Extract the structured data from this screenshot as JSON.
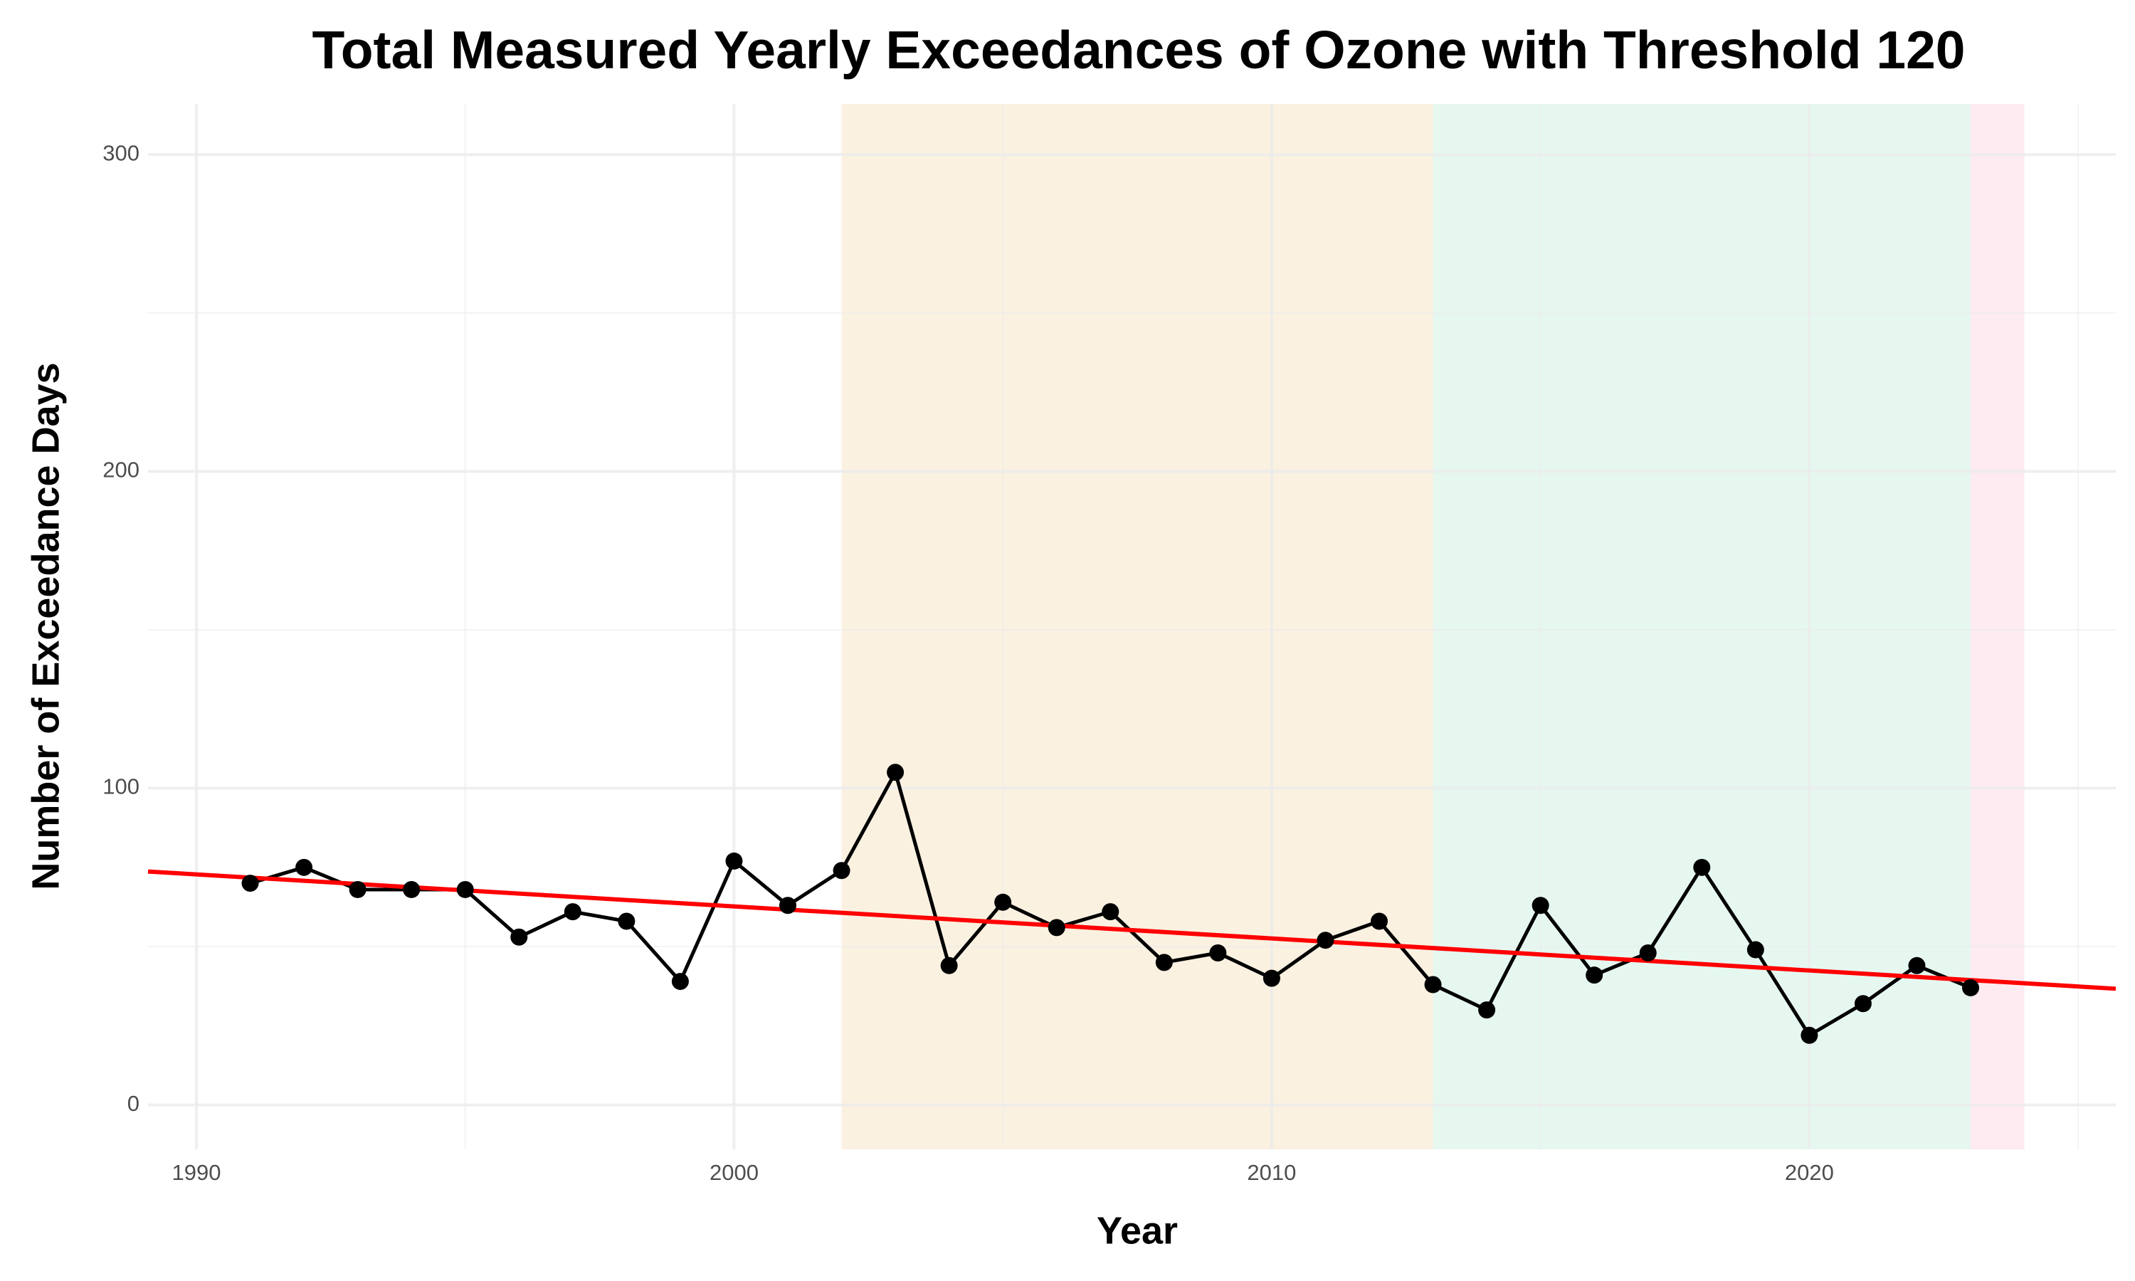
{
  "chart_data": {
    "type": "line",
    "title": "Total Measured Yearly Exceedances of Ozone with Threshold 120",
    "x_label": "Year",
    "y_label": "Number of Exceedance Days",
    "x": [
      1991,
      1992,
      1993,
      1994,
      1995,
      1996,
      1997,
      1998,
      1999,
      2000,
      2001,
      2002,
      2003,
      2004,
      2005,
      2006,
      2007,
      2008,
      2009,
      2010,
      2011,
      2012,
      2013,
      2014,
      2015,
      2016,
      2017,
      2018,
      2019,
      2020,
      2021,
      2022,
      2023
    ],
    "series": [
      {
        "color": "#000000",
        "values": [
          70,
          75,
          68,
          68,
          68,
          53,
          61,
          58,
          39,
          77,
          63,
          74,
          105,
          44,
          64,
          56,
          61,
          45,
          48,
          40,
          52,
          58,
          38,
          30,
          63,
          41,
          48,
          75,
          49,
          22,
          32,
          44,
          37
        ]
      }
    ],
    "trend": {
      "color": "#ff0000",
      "x": [
        1989.1,
        2025.7
      ],
      "values": [
        73.7,
        36.7
      ]
    },
    "bands": [
      {
        "start": 2002,
        "end": 2013,
        "color": "#faf1e1"
      },
      {
        "start": 2013,
        "end": 2023,
        "color": "#e6f7f0"
      },
      {
        "start": 2023,
        "end": 2024,
        "color": "#fdebf1"
      }
    ],
    "xlim": [
      1989.1,
      2025.7
    ],
    "ylim": [
      -14,
      316
    ],
    "xticks": [
      1990,
      2000,
      2010,
      2020
    ],
    "yticks": [
      0,
      100,
      200,
      300
    ],
    "x_minor_ticks": [
      1995,
      2005,
      2015,
      2025
    ],
    "y_minor_ticks": [
      50,
      150,
      250
    ],
    "grid": true
  }
}
